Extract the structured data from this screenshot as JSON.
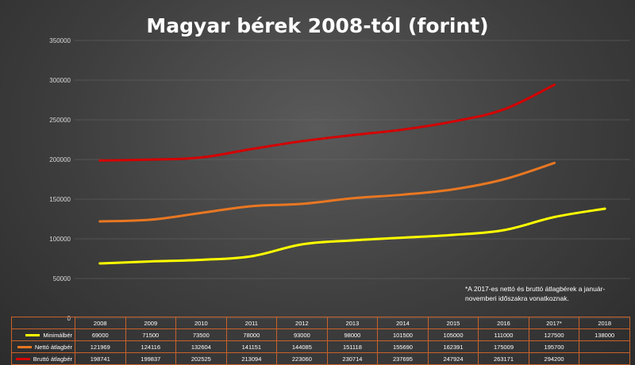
{
  "title": "Magyar bérek 2008-tól (forint)",
  "note": "*A 2017-es nettó és bruttó átlagbérek a január-novemberi időszakra vonatkoznak.",
  "colors": {
    "minimalber": "#ffff00",
    "netto": "#e87722",
    "brutto": "#d40000"
  },
  "chart_data": {
    "type": "line",
    "title": "Magyar bérek 2008-tól (forint)",
    "categories": [
      "2008",
      "2009",
      "2010",
      "2011",
      "2012",
      "2013",
      "2014",
      "2015",
      "2016",
      "2017*",
      "2018"
    ],
    "ylim": [
      0,
      350000
    ],
    "yticks": [
      "0",
      "50000",
      "100000",
      "150000",
      "200000",
      "250000",
      "300000",
      "350000"
    ],
    "grid": true,
    "legend": "data table below chart",
    "series": [
      {
        "name": "Minimálbér",
        "color": "#ffff00",
        "values": [
          69000,
          71500,
          73500,
          78000,
          93000,
          98000,
          101500,
          105000,
          111000,
          127500,
          138000
        ],
        "labels": [
          "69000",
          "71500",
          "73500",
          "78000",
          "93000",
          "98000",
          "101500",
          "105000",
          "111000",
          "127500",
          "138000"
        ]
      },
      {
        "name": "Nettó átlagbér",
        "color": "#e87722",
        "values": [
          121969,
          124116,
          132604,
          141151,
          144085,
          151118,
          155690,
          162391,
          175009,
          195700,
          null
        ],
        "labels": [
          "121969",
          "124116",
          "132604",
          "141151",
          "144085",
          "151118",
          "155690",
          "162391",
          "175009",
          "195700",
          ""
        ]
      },
      {
        "name": "Bruttó átlagbér",
        "color": "#d40000",
        "values": [
          198741,
          199837,
          202525,
          213094,
          223060,
          230714,
          237695,
          247924,
          263171,
          294200,
          null
        ],
        "labels": [
          "198741",
          "199837",
          "202525",
          "213094",
          "223060",
          "230714",
          "237695",
          "247924",
          "263171",
          "294200",
          ""
        ]
      }
    ]
  }
}
